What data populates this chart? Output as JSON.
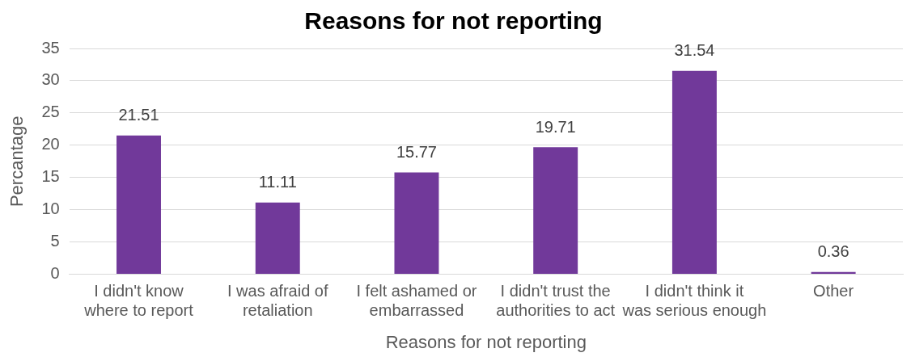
{
  "chart_data": {
    "type": "bar",
    "title": "Reasons for not reporting",
    "xlabel": "Reasons for not reporting",
    "ylabel": "Percantage",
    "categories": [
      "I didn't know where to report",
      "I was afraid of retaliation",
      "I felt ashamed or embarrassed",
      "I didn't trust the authorities to act",
      "I didn't think it was serious enough",
      "Other"
    ],
    "values": [
      21.51,
      11.11,
      15.77,
      19.71,
      31.54,
      0.36
    ],
    "color": "#71399a",
    "ylim": [
      0,
      35
    ],
    "yticks": [
      0,
      5,
      10,
      15,
      20,
      25,
      30,
      35
    ],
    "grid": "y",
    "data_labels": true,
    "legend": false
  }
}
